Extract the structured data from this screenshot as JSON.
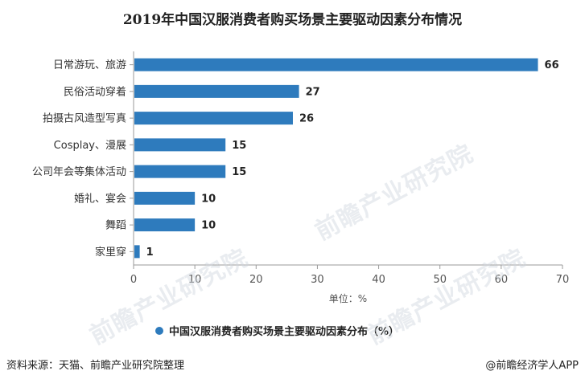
{
  "chart_data": {
    "type": "bar",
    "orientation": "horizontal",
    "title": "2019年中国汉服消费者购买场景主要驱动因素分布情况",
    "categories": [
      "日常游玩、旅游",
      "民俗活动穿着",
      "拍摄古风造型写真",
      "Cosplay、漫展",
      "公司年会等集体活动",
      "婚礼、宴会",
      "舞蹈",
      "家里穿"
    ],
    "series": [
      {
        "name": "中国汉服消费者购买场景主要驱动因素分布（%）",
        "values": [
          66,
          27,
          26,
          15,
          15,
          10,
          10,
          1
        ],
        "color": "#2e7bbd"
      }
    ],
    "xlabel": "单位：%",
    "xlim": [
      0,
      70
    ],
    "xticks": [
      0,
      10,
      20,
      30,
      40,
      50,
      60,
      70
    ],
    "grid": false,
    "legend": "bottom-center"
  },
  "footer": {
    "source": "资料来源：天猫、前瞻产业研究院整理",
    "credit": "@前瞻经济学人APP"
  },
  "watermark": "前瞻产业研究院"
}
